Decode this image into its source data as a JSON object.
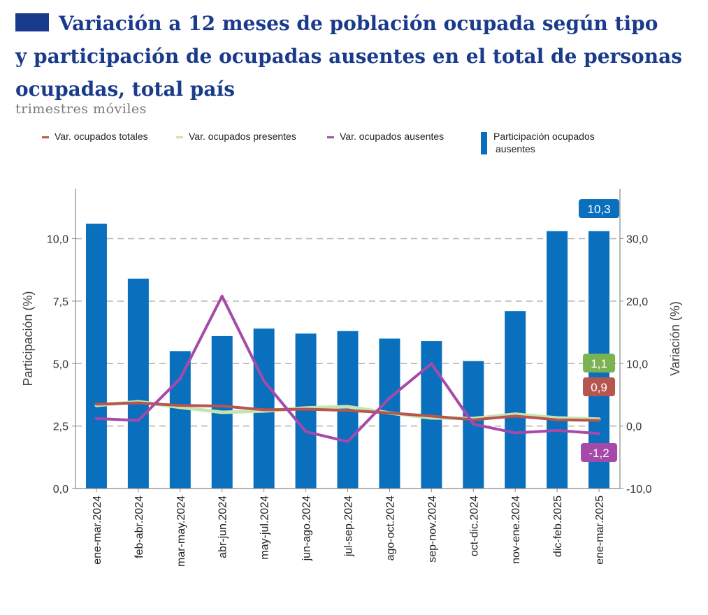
{
  "title": {
    "line1": "Variación a 12 meses de población ocupada según tipo",
    "line2": "y participación de ocupadas ausentes en el total de personas",
    "line3": "ocupadas, total país"
  },
  "subtitle": "trimestres móviles",
  "colors": {
    "title": "#1a3a8c",
    "bars": "#0a6fbd",
    "totales": "#b5574f",
    "presentes": "#c7e3b2",
    "ausentes": "#a64aaa",
    "badge_presentes": "#7bb352"
  },
  "chart_data": {
    "type": "bar",
    "categories": [
      "ene-mar.2024",
      "feb-abr.2024",
      "mar-may.2024",
      "abr-jun.2024",
      "may-jul.2024",
      "jun-ago.2024",
      "jul-sep.2024",
      "ago-oct.2024",
      "sep-nov.2024",
      "oct-dic.2024",
      "nov-ene.2024",
      "dic-feb.2025",
      "ene-mar.2025"
    ],
    "ylabel": "Participación (%)",
    "y2label": "Variación (%)",
    "ylim": [
      0,
      12
    ],
    "y2lim": [
      -10,
      38
    ],
    "yticks": [
      "0,0",
      "2,5",
      "5,0",
      "7,5",
      "10,0"
    ],
    "y2ticks": [
      "-10,0",
      "0,0",
      "10,0",
      "20,0",
      "30,0"
    ],
    "grid": "dashed horizontal",
    "legend_position": "top",
    "bar_series": {
      "name": "Participación ocupados ausentes",
      "values": [
        10.6,
        8.4,
        5.5,
        6.1,
        6.4,
        6.2,
        6.3,
        6.0,
        5.9,
        5.1,
        7.1,
        10.3,
        10.3
      ]
    },
    "line_series": [
      {
        "key": "totales",
        "name": "Var. ocupados totales",
        "values": [
          3.5,
          3.7,
          3.3,
          3.2,
          2.6,
          2.7,
          2.5,
          2.1,
          1.6,
          1.0,
          1.6,
          1.0,
          0.9
        ]
      },
      {
        "key": "presentes",
        "name": "Var. ocupados presentes",
        "values": [
          3.3,
          3.9,
          3.0,
          2.2,
          2.4,
          2.9,
          3.1,
          2.1,
          1.3,
          1.2,
          1.9,
          1.3,
          1.1
        ]
      },
      {
        "key": "ausentes",
        "name": "Var. ocupados ausentes",
        "values": [
          1.2,
          0.9,
          7.6,
          20.8,
          7.2,
          -0.9,
          -2.5,
          4.5,
          10.0,
          0.3,
          -1.1,
          -0.7,
          -1.2
        ]
      }
    ],
    "end_labels": {
      "bar": "10,3",
      "presentes": "1,1",
      "totales": "0,9",
      "ausentes": "-1,2"
    }
  },
  "legend": {
    "totales": "Var. ocupados totales",
    "presentes": "Var. ocupados presentes",
    "ausentes": "Var. ocupados ausentes",
    "bar_line1": "Participación ocupados",
    "bar_line2": "ausentes"
  }
}
